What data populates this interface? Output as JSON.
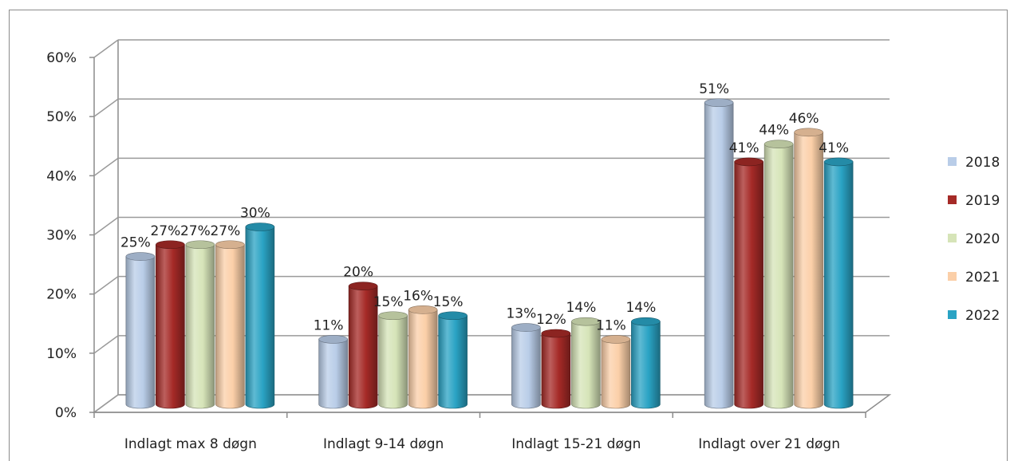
{
  "chart_data": {
    "type": "bar",
    "style": "3d-cylinder",
    "categories": [
      "Indlagt max 8 døgn",
      "Indlagt 9-14 døgn",
      "Indlagt 15-21 døgn",
      "Indlagt over 21 døgn"
    ],
    "series": [
      {
        "name": "2018",
        "color": "#b9cde8",
        "values": [
          25,
          11,
          13,
          51
        ]
      },
      {
        "name": "2019",
        "color": "#a52a27",
        "values": [
          27,
          20,
          12,
          41
        ]
      },
      {
        "name": "2020",
        "color": "#d6e4b8",
        "values": [
          27,
          15,
          14,
          44
        ]
      },
      {
        "name": "2021",
        "color": "#fbcfa8",
        "values": [
          27,
          16,
          11,
          46
        ]
      },
      {
        "name": "2022",
        "color": "#2aa3c4",
        "values": [
          30,
          15,
          14,
          41
        ]
      }
    ],
    "data_labels": [
      [
        "25%",
        "11%",
        "13%",
        "51%"
      ],
      [
        "27%",
        "20%",
        "12%",
        "41%"
      ],
      [
        "27%",
        "15%",
        "14%",
        "44%"
      ],
      [
        "27%",
        "16%",
        "11%",
        "46%"
      ],
      [
        "30%",
        "15%",
        "14%",
        "41%"
      ]
    ],
    "y_ticks": [
      "0%",
      "10%",
      "20%",
      "30%",
      "40%",
      "50%",
      "60%"
    ],
    "ylim": [
      0,
      60
    ],
    "unit": "%",
    "grid": true,
    "legend_position": "right"
  }
}
